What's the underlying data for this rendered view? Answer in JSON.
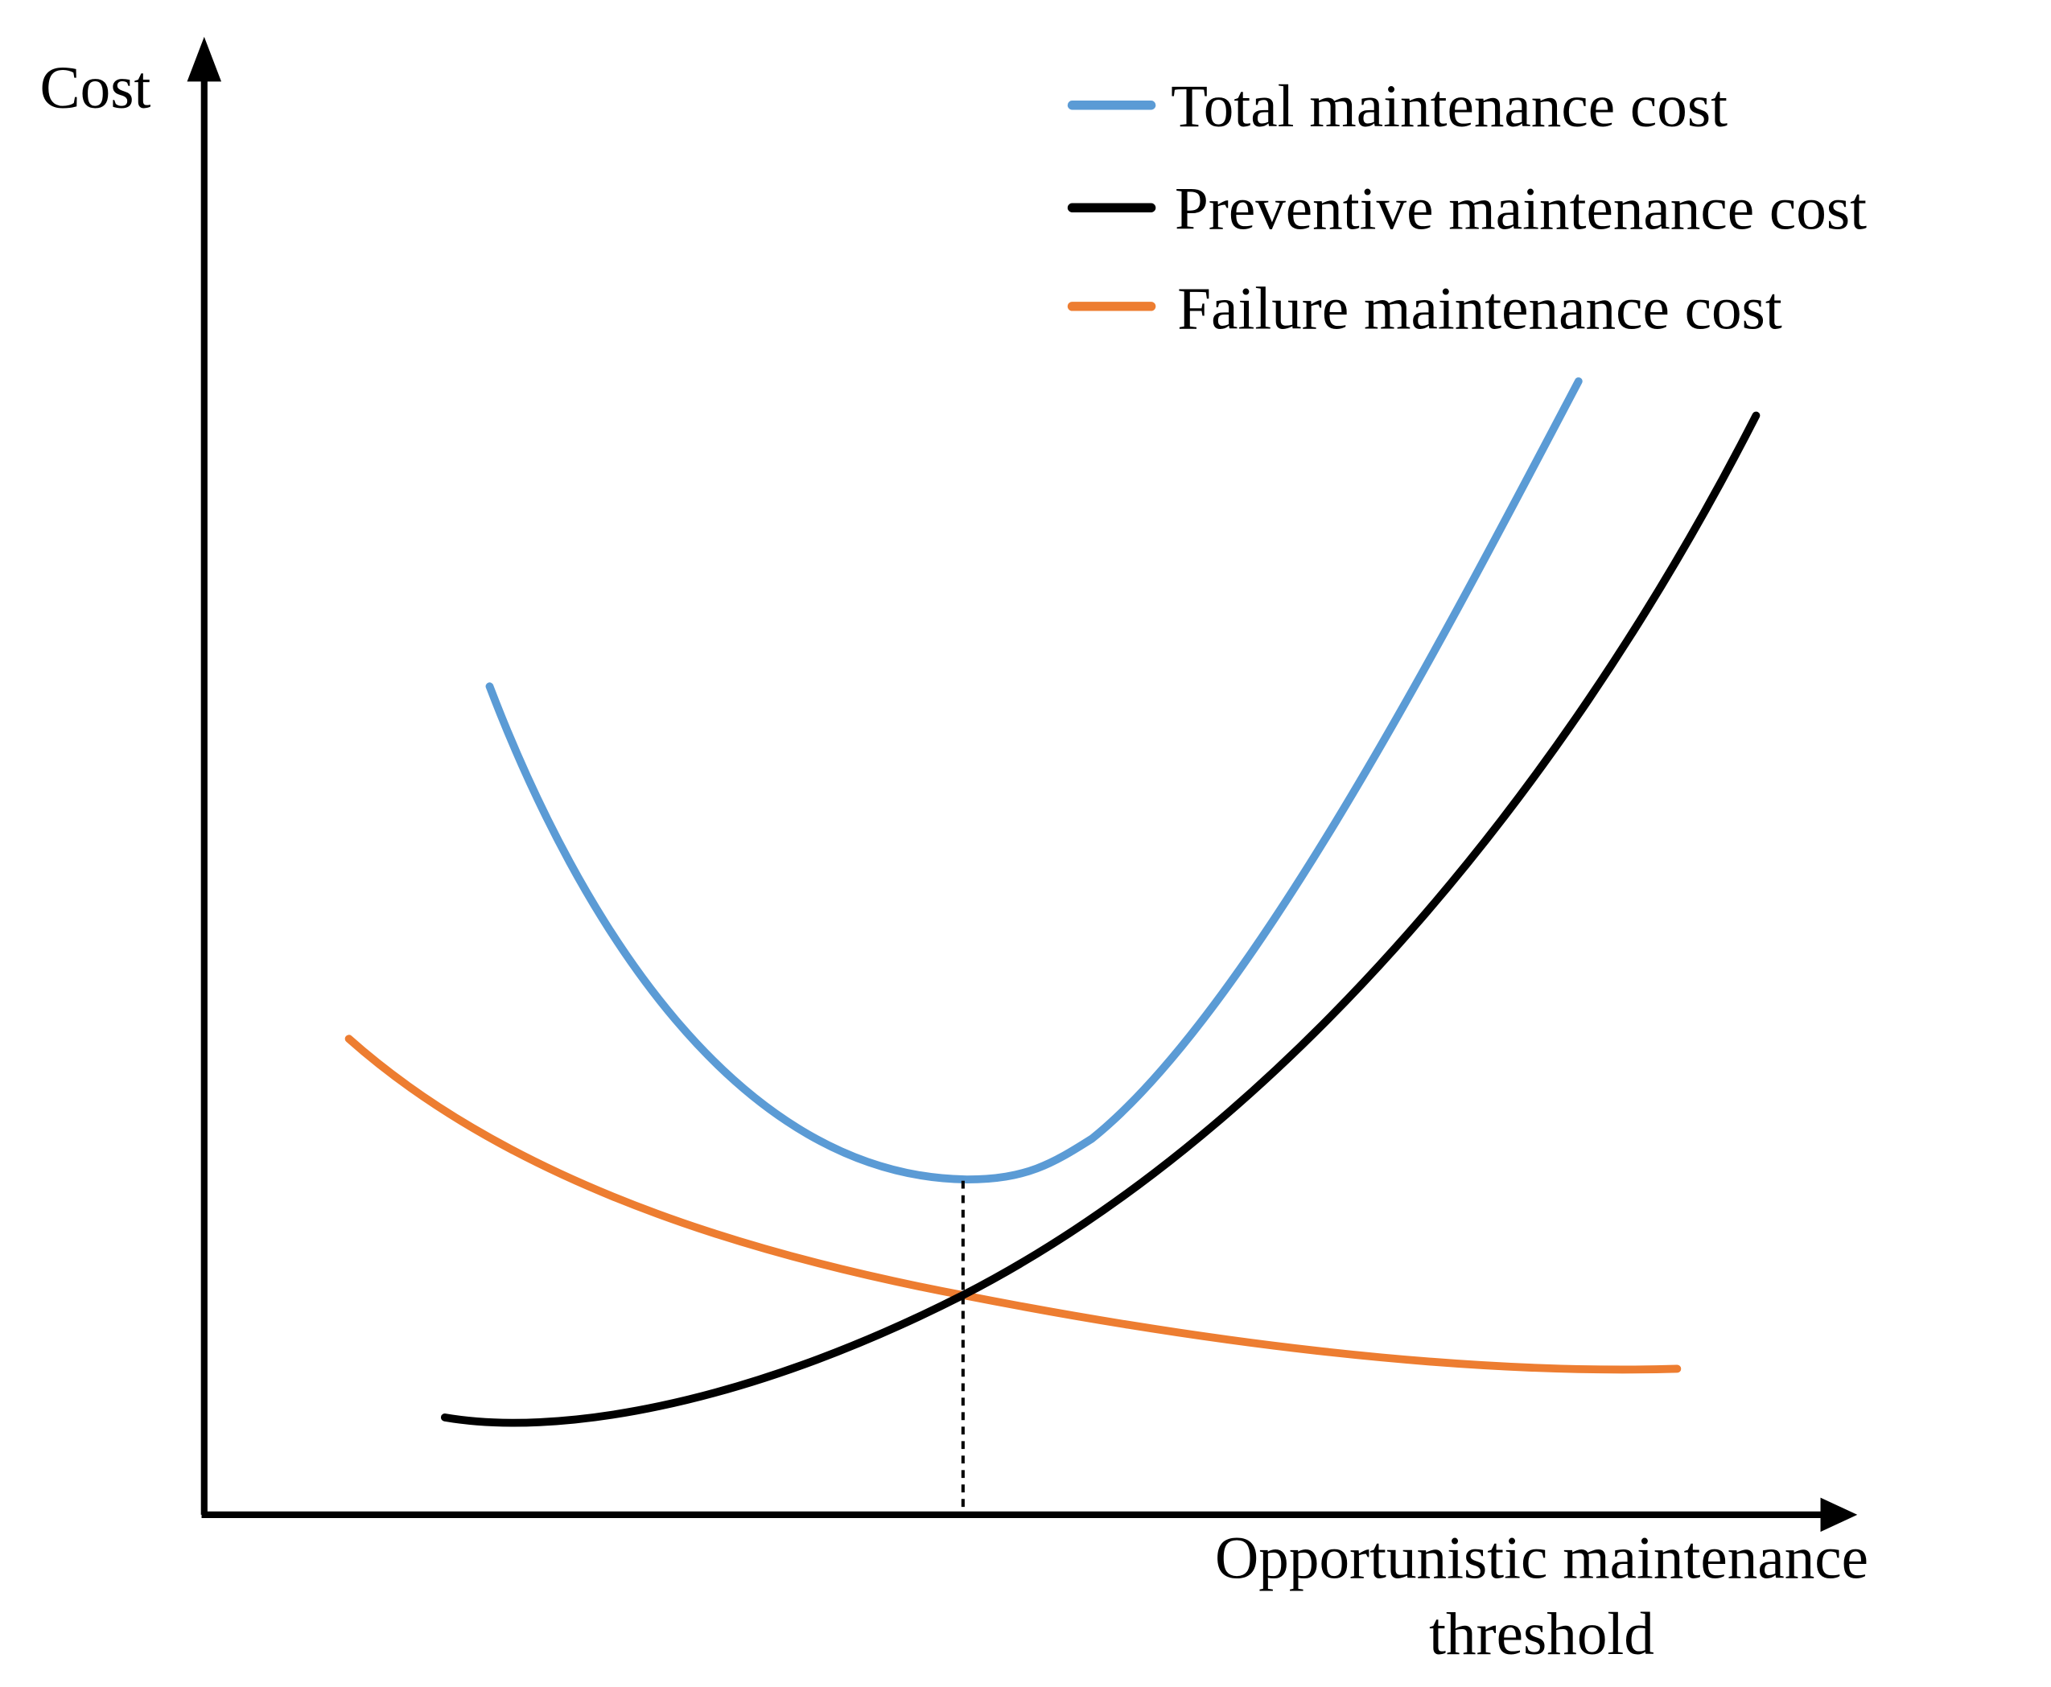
{
  "axes": {
    "y_label": "Cost",
    "x_label": [
      "Opportunistic maintenance",
      "threshold"
    ]
  },
  "legend": [
    "Total maintenance cost",
    "Preventive maintenance cost",
    "Failure maintenance cost"
  ]
}
